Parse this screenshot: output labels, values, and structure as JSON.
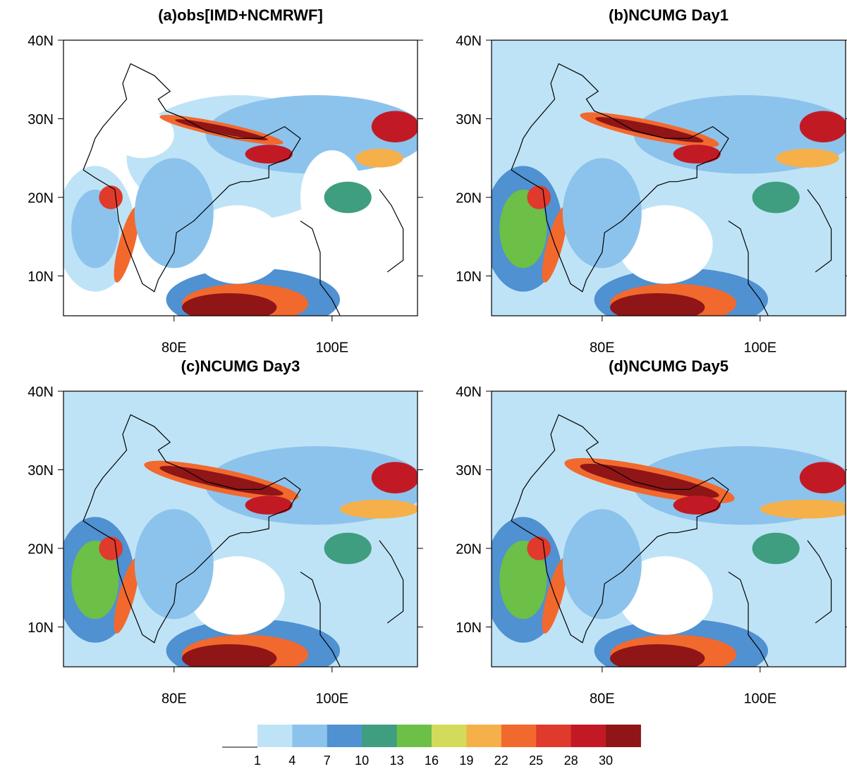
{
  "panels": [
    {
      "title": "(a)obs[IMD+NCMRWF]",
      "lat_labels": [
        "40N",
        "30N",
        "20N",
        "10N"
      ],
      "lon_labels": [
        "80E",
        "100E"
      ]
    },
    {
      "title": "(b)NCUMG Day1",
      "lat_labels": [
        "40N",
        "30N",
        "20N",
        "10N"
      ],
      "lon_labels": [
        "80E",
        "100E"
      ]
    },
    {
      "title": "(c)NCUMG Day3",
      "lat_labels": [
        "40N",
        "30N",
        "20N",
        "10N"
      ],
      "lon_labels": [
        "80E",
        "100E"
      ]
    },
    {
      "title": "(d)NCUMG Day5",
      "lat_labels": [
        "40N",
        "30N",
        "20N",
        "10N"
      ],
      "lon_labels": [
        "80E",
        "100E"
      ]
    }
  ],
  "colorbar": {
    "levels": [
      1,
      4,
      7,
      10,
      13,
      16,
      19,
      22,
      25,
      28,
      30
    ],
    "colors": [
      "#ffffff",
      "#bfe3f6",
      "#8cc3ec",
      "#4f91d1",
      "#3f9e7f",
      "#6cbf47",
      "#d3dc5a",
      "#f6b04a",
      "#f2692e",
      "#e03a2c",
      "#c21a25",
      "#8f1517"
    ]
  }
}
